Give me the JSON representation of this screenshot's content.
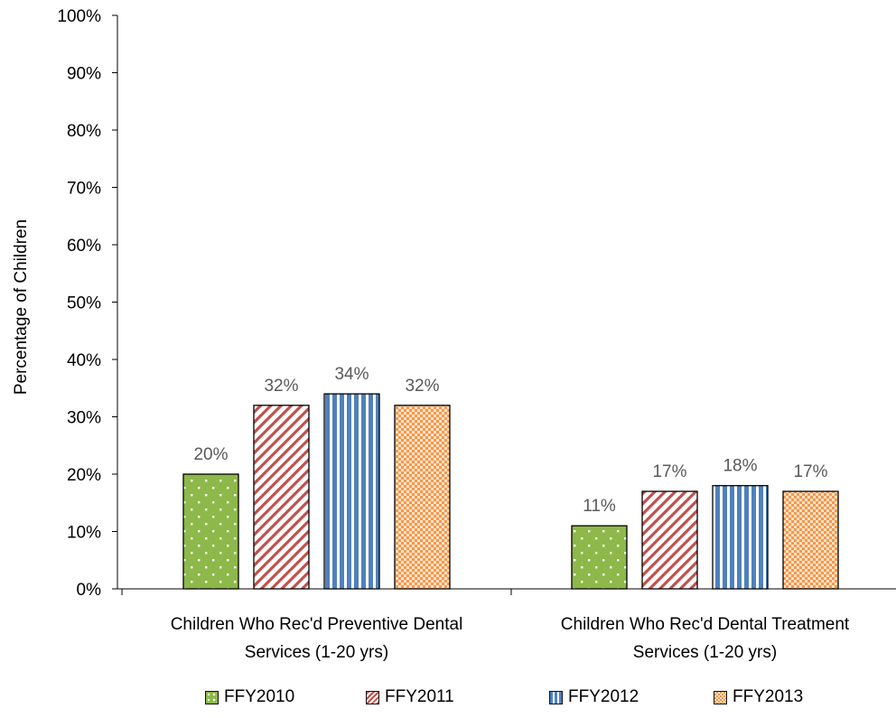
{
  "chart_data": {
    "type": "bar",
    "ylabel": "Percentage of Children",
    "ylim": [
      0,
      100
    ],
    "yticks": [
      "0%",
      "10%",
      "20%",
      "30%",
      "40%",
      "50%",
      "60%",
      "70%",
      "80%",
      "90%",
      "100%"
    ],
    "categories": [
      [
        "Children Who Rec'd Preventive Dental",
        "Services (1-20 yrs)"
      ],
      [
        "Children Who Rec'd Dental Treatment",
        "Services (1-20 yrs)"
      ]
    ],
    "series": [
      {
        "name": "FFY2010",
        "values": [
          20,
          11
        ],
        "labels": [
          "20%",
          "11%"
        ],
        "color": "#8db84a",
        "pattern": "dots"
      },
      {
        "name": "FFY2011",
        "values": [
          32,
          17
        ],
        "labels": [
          "32%",
          "17%"
        ],
        "color": "#c0504d",
        "pattern": "diagonal"
      },
      {
        "name": "FFY2012",
        "values": [
          34,
          18
        ],
        "labels": [
          "34%",
          "18%"
        ],
        "color": "#4f81bd",
        "pattern": "vertical"
      },
      {
        "name": "FFY2013",
        "values": [
          32,
          17
        ],
        "labels": [
          "32%",
          "17%"
        ],
        "color": "#f79646",
        "pattern": "checker"
      }
    ],
    "grid": false,
    "legend": "bottom"
  }
}
